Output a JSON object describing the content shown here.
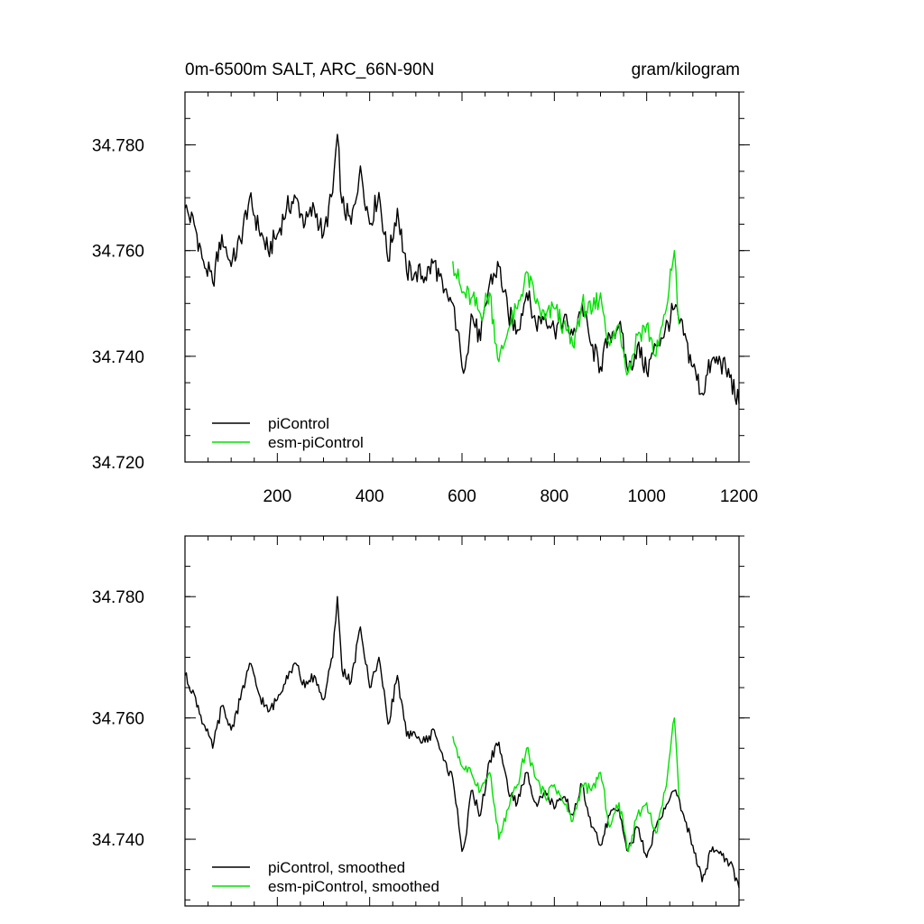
{
  "colors": {
    "piControl": "#000000",
    "esm": "#00e000"
  },
  "chart_data": [
    {
      "type": "line",
      "title_left": "0m-6500m SALT, ARC_66N-90N",
      "title_right": "gram/kilogram",
      "xlim": [
        0,
        1200
      ],
      "ylim": [
        34.72,
        34.79
      ],
      "x_ticks": [
        200,
        400,
        600,
        800,
        1000,
        1200
      ],
      "y_ticks": [
        34.72,
        34.74,
        34.76,
        34.78
      ],
      "y_tick_labels": [
        "34.720",
        "34.740",
        "34.760",
        "34.780"
      ],
      "legend_position": "bottom-left",
      "series": [
        {
          "name": "piControl",
          "color": "#000000",
          "x": [
            0,
            20,
            40,
            60,
            80,
            100,
            120,
            140,
            160,
            180,
            200,
            220,
            240,
            260,
            280,
            300,
            320,
            330,
            340,
            360,
            380,
            400,
            420,
            440,
            460,
            480,
            500,
            520,
            540,
            560,
            580,
            590,
            600,
            610,
            620,
            640,
            660,
            680,
            700,
            720,
            740,
            760,
            780,
            800,
            820,
            840,
            860,
            880,
            900,
            920,
            940,
            960,
            980,
            1000,
            1020,
            1040,
            1060,
            1080,
            1100,
            1120,
            1140,
            1160,
            1180,
            1200
          ],
          "y": [
            34.768,
            34.765,
            34.758,
            34.754,
            34.763,
            34.757,
            34.762,
            34.77,
            34.764,
            34.76,
            34.763,
            34.768,
            34.77,
            34.765,
            34.768,
            34.763,
            34.771,
            34.782,
            34.769,
            34.765,
            34.776,
            34.765,
            34.771,
            34.758,
            34.768,
            34.756,
            34.756,
            34.755,
            34.758,
            34.752,
            34.75,
            34.745,
            34.738,
            34.74,
            34.748,
            34.743,
            34.754,
            34.757,
            34.748,
            34.745,
            34.752,
            34.746,
            34.748,
            34.745,
            34.747,
            34.744,
            34.75,
            34.742,
            34.738,
            34.744,
            34.746,
            34.737,
            34.742,
            34.737,
            34.742,
            34.745,
            34.749,
            34.744,
            34.738,
            34.733,
            34.739,
            34.739,
            34.736,
            34.731
          ]
        },
        {
          "name": "esm-piControl",
          "color": "#00e000",
          "x": [
            580,
            600,
            620,
            640,
            660,
            680,
            700,
            720,
            740,
            760,
            780,
            800,
            820,
            840,
            860,
            880,
            900,
            920,
            940,
            960,
            980,
            1000,
            1020,
            1040,
            1060,
            1070
          ],
          "y": [
            34.758,
            34.752,
            34.751,
            34.748,
            34.752,
            34.739,
            34.745,
            34.749,
            34.756,
            34.75,
            34.747,
            34.749,
            34.746,
            34.742,
            34.75,
            34.748,
            34.752,
            34.742,
            34.746,
            34.737,
            34.744,
            34.746,
            34.74,
            34.748,
            34.76,
            34.746
          ]
        }
      ]
    },
    {
      "type": "line",
      "xlim": [
        0,
        1200
      ],
      "ylim": [
        34.729,
        34.79
      ],
      "x_ticks": [
        200,
        400,
        600,
        800,
        1000,
        1200
      ],
      "y_ticks": [
        34.74,
        34.76,
        34.78
      ],
      "y_tick_labels": [
        "34.740",
        "34.760",
        "34.780"
      ],
      "legend_position": "bottom-left",
      "series": [
        {
          "name": "piControl, smoothed",
          "color": "#000000",
          "x": [
            0,
            20,
            40,
            60,
            80,
            100,
            120,
            140,
            160,
            180,
            200,
            220,
            240,
            260,
            280,
            300,
            320,
            330,
            340,
            360,
            380,
            400,
            420,
            440,
            460,
            480,
            500,
            520,
            540,
            560,
            580,
            590,
            600,
            610,
            620,
            640,
            660,
            680,
            700,
            720,
            740,
            760,
            780,
            800,
            820,
            840,
            860,
            880,
            900,
            920,
            940,
            960,
            980,
            1000,
            1020,
            1040,
            1060,
            1080,
            1100,
            1120,
            1140,
            1160,
            1180,
            1200
          ],
          "y": [
            34.767,
            34.764,
            34.759,
            34.755,
            34.762,
            34.758,
            34.763,
            34.769,
            34.764,
            34.761,
            34.763,
            34.767,
            34.769,
            34.765,
            34.767,
            34.763,
            34.77,
            34.78,
            34.768,
            34.766,
            34.775,
            34.765,
            34.77,
            34.759,
            34.767,
            34.757,
            34.757,
            34.756,
            34.758,
            34.753,
            34.75,
            34.745,
            34.738,
            34.741,
            34.748,
            34.744,
            34.753,
            34.756,
            34.748,
            34.746,
            34.751,
            34.746,
            34.748,
            34.745,
            34.747,
            34.744,
            34.749,
            34.742,
            34.739,
            34.744,
            34.745,
            34.738,
            34.742,
            34.737,
            34.742,
            34.745,
            34.748,
            34.744,
            34.739,
            34.733,
            34.738,
            34.738,
            34.736,
            34.732
          ]
        },
        {
          "name": "esm-piControl, smoothed",
          "color": "#00e000",
          "x": [
            580,
            600,
            620,
            640,
            660,
            680,
            700,
            720,
            740,
            760,
            780,
            800,
            820,
            840,
            860,
            880,
            900,
            920,
            940,
            960,
            980,
            1000,
            1020,
            1040,
            1060,
            1070
          ],
          "y": [
            34.757,
            34.752,
            34.751,
            34.748,
            34.751,
            34.74,
            34.745,
            34.749,
            34.755,
            34.75,
            34.747,
            34.749,
            34.746,
            34.743,
            34.749,
            34.748,
            34.751,
            34.742,
            34.746,
            34.738,
            34.744,
            34.746,
            34.741,
            34.748,
            34.76,
            34.747
          ]
        }
      ]
    }
  ]
}
